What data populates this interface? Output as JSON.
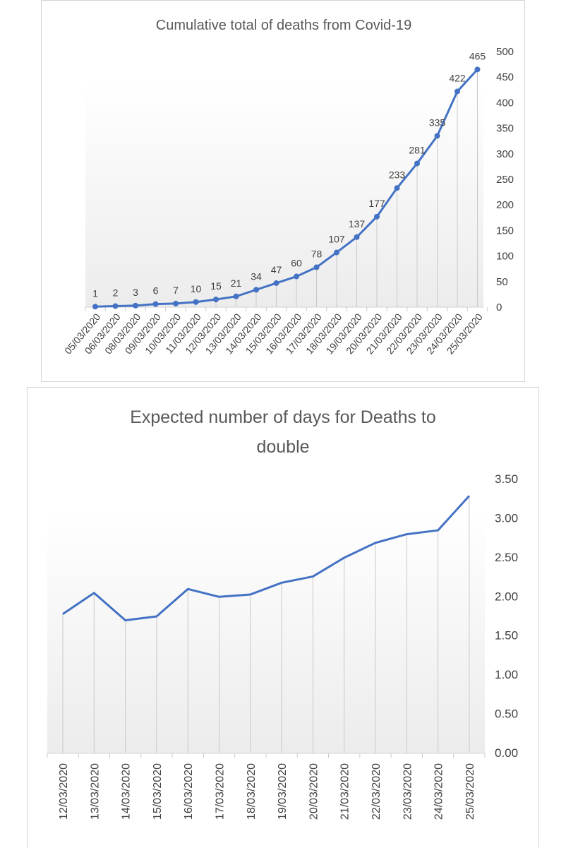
{
  "chart_data": [
    {
      "type": "line",
      "title": "Cumulative  total of deaths from Covid-19",
      "categories": [
        "05/03/2020",
        "06/03/2020",
        "08/03/2020",
        "09/03/2020",
        "10/03/2020",
        "11/03/2020",
        "12/03/2020",
        "13/03/2020",
        "14/03/2020",
        "15/03/2020",
        "16/03/2020",
        "17/03/2020",
        "18/03/2020",
        "19/03/2020",
        "20/03/2020",
        "21/03/2020",
        "22/03/2020",
        "23/03/2020",
        "24/03/2020",
        "25/03/2020"
      ],
      "values": [
        1,
        2,
        3,
        6,
        7,
        10,
        15,
        21,
        34,
        47,
        60,
        78,
        107,
        137,
        177,
        233,
        281,
        335,
        422,
        465
      ],
      "data_labels": [
        "1",
        "2",
        "3",
        "6",
        "7",
        "10",
        "15",
        "21",
        "34",
        "47",
        "60",
        "78",
        "107",
        "137",
        "177",
        "233",
        "281",
        "335",
        "422",
        "465"
      ],
      "y_ticks": [
        "0",
        "50",
        "100",
        "150",
        "200",
        "250",
        "300",
        "350",
        "400",
        "450",
        "500"
      ],
      "ylim": [
        0,
        500
      ],
      "y_axis_side": "right",
      "markers": true,
      "drop_lines": true,
      "grid": false,
      "legend": "none",
      "line_color": "#4472c4"
    },
    {
      "type": "line",
      "title_lines": [
        "Expected  number of days for Deaths to",
        "double"
      ],
      "categories": [
        "12/03/2020",
        "13/03/2020",
        "14/03/2020",
        "15/03/2020",
        "16/03/2020",
        "17/03/2020",
        "18/03/2020",
        "19/03/2020",
        "20/03/2020",
        "21/03/2020",
        "22/03/2020",
        "23/03/2020",
        "24/03/2020",
        "25/03/2020"
      ],
      "values": [
        1.78,
        2.05,
        1.7,
        1.75,
        2.1,
        2.0,
        2.03,
        2.18,
        2.26,
        2.5,
        2.69,
        2.8,
        2.85,
        3.29
      ],
      "y_ticks": [
        "0.00",
        "0.50",
        "1.00",
        "1.50",
        "2.00",
        "2.50",
        "3.00",
        "3.50"
      ],
      "ylim": [
        0,
        3.5
      ],
      "y_axis_side": "right",
      "markers": false,
      "drop_lines": true,
      "grid": false,
      "legend": "none",
      "line_color": "#4472c4"
    }
  ]
}
